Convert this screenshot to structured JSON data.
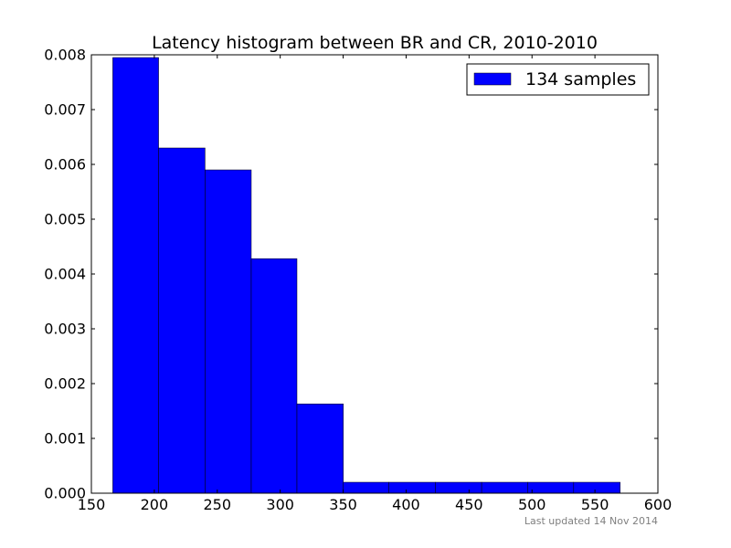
{
  "chart_data": {
    "type": "bar",
    "title": "Latency histogram between BR and CR, 2010-2010",
    "xlabel": "",
    "ylabel": "",
    "xlim": [
      150,
      600
    ],
    "ylim": [
      0,
      0.008
    ],
    "x_ticks": [
      "150",
      "200",
      "250",
      "300",
      "350",
      "400",
      "450",
      "500",
      "550",
      "600"
    ],
    "y_ticks": [
      "0.000",
      "0.001",
      "0.002",
      "0.003",
      "0.004",
      "0.005",
      "0.006",
      "0.007",
      "0.008"
    ],
    "bin_edges": [
      167,
      203.4,
      240.3,
      277,
      313.3,
      350.1,
      386.3,
      423.2,
      460,
      496.5,
      533.1,
      570
    ],
    "values": [
      0.00795,
      0.0063,
      0.0059,
      0.00428,
      0.00163,
      0.0002,
      0.0002,
      0.0002,
      0.0002,
      0.0002,
      0.0002
    ],
    "bar_color": "#0000ff",
    "legend": {
      "label": "134 samples",
      "position": "top-right"
    },
    "grid": false
  },
  "footer": {
    "text": "Last updated 14 Nov 2014"
  }
}
